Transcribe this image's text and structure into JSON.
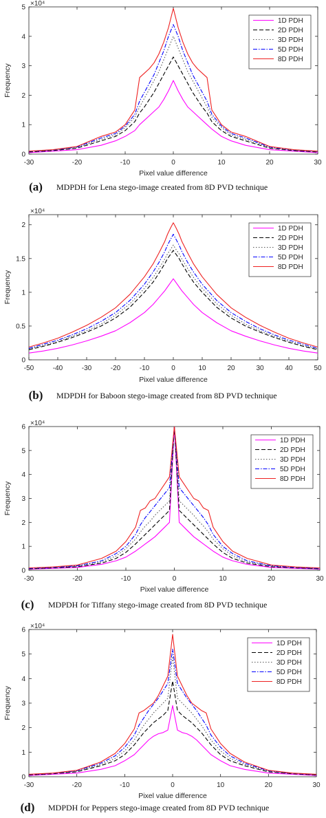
{
  "legend_names": [
    "1D PDH",
    "2D PDH",
    "3D PDH",
    "5D PDH",
    "8D PDH"
  ],
  "colors": {
    "1D PDH": "#ff00ff",
    "2D PDH": "#000000",
    "3D PDH": "#555555",
    "5D PDH": "#0000ff",
    "8D PDH": "#ee2020"
  },
  "chart_data": [
    {
      "type": "line",
      "panel_letter": "(a)",
      "caption": "MDPDH for Lena stego-image created from 8D PVD technique",
      "xlabel": "Pixel value difference",
      "ylabel": "Frequency",
      "y_exponent_label": "×10⁴",
      "xlim": [
        -30,
        30
      ],
      "ylim": [
        0,
        5
      ],
      "x_ticks": [
        -30,
        -20,
        -10,
        0,
        10,
        20,
        30
      ],
      "y_ticks": [
        0,
        1,
        2,
        3,
        4,
        5
      ],
      "legend": "top-right",
      "x": [
        -30,
        -25,
        -20,
        -15,
        -12,
        -10,
        -8,
        -7,
        -6,
        -5,
        -4,
        -3,
        -2,
        -1,
        0,
        1,
        2,
        3,
        4,
        5,
        6,
        7,
        8,
        10,
        12,
        15,
        20,
        25,
        30
      ],
      "series": [
        {
          "name": "1D PDH",
          "values": [
            0.05,
            0.1,
            0.15,
            0.3,
            0.45,
            0.6,
            0.8,
            1.0,
            1.15,
            1.3,
            1.45,
            1.6,
            1.85,
            2.15,
            2.5,
            2.15,
            1.85,
            1.6,
            1.45,
            1.3,
            1.15,
            1.0,
            0.85,
            0.6,
            0.45,
            0.3,
            0.15,
            0.1,
            0.05
          ]
        },
        {
          "name": "2D PDH",
          "values": [
            0.07,
            0.12,
            0.2,
            0.45,
            0.6,
            0.8,
            1.1,
            1.4,
            1.6,
            1.85,
            2.1,
            2.4,
            2.7,
            3.0,
            3.3,
            3.0,
            2.7,
            2.4,
            2.1,
            1.85,
            1.6,
            1.4,
            1.1,
            0.8,
            0.6,
            0.45,
            0.2,
            0.12,
            0.07
          ]
        },
        {
          "name": "3D PDH",
          "values": [
            0.08,
            0.13,
            0.22,
            0.5,
            0.65,
            0.9,
            1.25,
            1.6,
            1.9,
            2.2,
            2.5,
            2.8,
            3.2,
            3.6,
            4.0,
            3.6,
            3.2,
            2.8,
            2.5,
            2.2,
            1.9,
            1.6,
            1.25,
            0.9,
            0.65,
            0.5,
            0.22,
            0.13,
            0.08
          ]
        },
        {
          "name": "5D PDH",
          "values": [
            0.09,
            0.14,
            0.24,
            0.55,
            0.7,
            0.95,
            1.35,
            1.8,
            2.1,
            2.4,
            2.7,
            3.1,
            3.5,
            4.0,
            4.4,
            4.0,
            3.5,
            3.1,
            2.7,
            2.4,
            2.1,
            1.8,
            1.35,
            0.95,
            0.7,
            0.55,
            0.24,
            0.14,
            0.09
          ]
        },
        {
          "name": "8D PDH",
          "values": [
            0.1,
            0.15,
            0.26,
            0.6,
            0.75,
            1.0,
            1.5,
            2.6,
            2.75,
            2.9,
            3.1,
            3.4,
            3.8,
            4.3,
            4.95,
            4.3,
            3.8,
            3.4,
            3.1,
            2.9,
            2.75,
            2.6,
            1.5,
            1.0,
            0.75,
            0.6,
            0.26,
            0.15,
            0.1
          ]
        }
      ]
    },
    {
      "type": "line",
      "panel_letter": "(b)",
      "caption": "MDPDH for Baboon stego-image created from 8D PVD technique",
      "xlabel": "Pixel value difference",
      "ylabel": "Frequency",
      "y_exponent_label": "×10⁴",
      "xlim": [
        -50,
        50
      ],
      "ylim": [
        0,
        2.15
      ],
      "x_ticks": [
        -50,
        -40,
        -30,
        -20,
        -10,
        0,
        10,
        20,
        30,
        40,
        50
      ],
      "y_ticks": [
        0,
        0.5,
        1,
        1.5,
        2
      ],
      "legend": "top-right",
      "x": [
        -50,
        -45,
        -40,
        -35,
        -30,
        -25,
        -20,
        -15,
        -10,
        -7,
        -5,
        -3,
        -2,
        -1,
        0,
        1,
        2,
        3,
        5,
        7,
        10,
        15,
        20,
        25,
        30,
        35,
        40,
        45,
        50
      ],
      "series": [
        {
          "name": "1D PDH",
          "values": [
            0.1,
            0.13,
            0.17,
            0.22,
            0.28,
            0.35,
            0.43,
            0.55,
            0.7,
            0.82,
            0.92,
            1.02,
            1.08,
            1.14,
            1.2,
            1.14,
            1.08,
            1.02,
            0.92,
            0.82,
            0.7,
            0.55,
            0.43,
            0.35,
            0.28,
            0.22,
            0.17,
            0.13,
            0.1
          ]
        },
        {
          "name": "2D PDH",
          "values": [
            0.15,
            0.2,
            0.26,
            0.33,
            0.41,
            0.5,
            0.62,
            0.78,
            1.0,
            1.15,
            1.28,
            1.42,
            1.5,
            1.56,
            1.62,
            1.56,
            1.5,
            1.42,
            1.28,
            1.15,
            1.0,
            0.78,
            0.62,
            0.5,
            0.41,
            0.33,
            0.26,
            0.2,
            0.15
          ]
        },
        {
          "name": "3D PDH",
          "values": [
            0.16,
            0.21,
            0.27,
            0.35,
            0.43,
            0.53,
            0.66,
            0.83,
            1.06,
            1.22,
            1.35,
            1.49,
            1.57,
            1.63,
            1.7,
            1.63,
            1.57,
            1.49,
            1.35,
            1.22,
            1.06,
            0.83,
            0.66,
            0.53,
            0.43,
            0.35,
            0.27,
            0.21,
            0.16
          ]
        },
        {
          "name": "5D PDH",
          "values": [
            0.17,
            0.23,
            0.29,
            0.37,
            0.46,
            0.57,
            0.7,
            0.88,
            1.12,
            1.3,
            1.44,
            1.6,
            1.7,
            1.78,
            1.86,
            1.78,
            1.7,
            1.6,
            1.44,
            1.3,
            1.12,
            0.88,
            0.7,
            0.57,
            0.46,
            0.37,
            0.29,
            0.23,
            0.17
          ]
        },
        {
          "name": "8D PDH",
          "values": [
            0.19,
            0.25,
            0.32,
            0.41,
            0.51,
            0.63,
            0.77,
            0.97,
            1.23,
            1.42,
            1.58,
            1.75,
            1.86,
            1.95,
            2.03,
            1.95,
            1.86,
            1.75,
            1.58,
            1.42,
            1.23,
            0.97,
            0.77,
            0.63,
            0.51,
            0.41,
            0.32,
            0.25,
            0.19
          ]
        }
      ]
    },
    {
      "type": "line",
      "panel_letter": "(c)",
      "caption": "MDPDH for Tiffany stego-image created from 8D PVD technique",
      "xlabel": "Pixel value difference",
      "ylabel": "Frequency",
      "y_exponent_label": "×10⁴",
      "xlim": [
        -30,
        30
      ],
      "ylim": [
        0,
        6
      ],
      "x_ticks": [
        -30,
        -20,
        -10,
        0,
        10,
        20,
        30
      ],
      "y_ticks": [
        0,
        1,
        2,
        3,
        4,
        5,
        6
      ],
      "legend": "top-right",
      "x": [
        -30,
        -25,
        -20,
        -15,
        -12,
        -10,
        -8,
        -7,
        -6,
        -5,
        -4,
        -3,
        -2,
        -1,
        0,
        1,
        2,
        3,
        4,
        5,
        6,
        7,
        8,
        10,
        12,
        15,
        20,
        25,
        30
      ],
      "series": [
        {
          "name": "1D PDH",
          "values": [
            0.05,
            0.08,
            0.12,
            0.25,
            0.4,
            0.55,
            0.8,
            0.95,
            1.1,
            1.25,
            1.4,
            1.6,
            1.8,
            2.0,
            6.0,
            2.0,
            1.8,
            1.6,
            1.4,
            1.25,
            1.1,
            0.95,
            0.8,
            0.55,
            0.4,
            0.25,
            0.12,
            0.08,
            0.05
          ]
        },
        {
          "name": "2D PDH",
          "values": [
            0.06,
            0.1,
            0.15,
            0.3,
            0.5,
            0.75,
            1.1,
            1.3,
            1.5,
            1.7,
            1.9,
            2.1,
            2.3,
            2.5,
            6.0,
            2.5,
            2.3,
            2.1,
            1.9,
            1.7,
            1.5,
            1.3,
            1.1,
            0.75,
            0.5,
            0.3,
            0.15,
            0.1,
            0.06
          ]
        },
        {
          "name": "3D PDH",
          "values": [
            0.07,
            0.11,
            0.17,
            0.35,
            0.6,
            0.9,
            1.3,
            1.6,
            1.85,
            2.05,
            2.3,
            2.5,
            2.7,
            2.9,
            6.0,
            2.9,
            2.7,
            2.5,
            2.3,
            2.05,
            1.85,
            1.6,
            1.3,
            0.9,
            0.6,
            0.35,
            0.17,
            0.11,
            0.07
          ]
        },
        {
          "name": "5D PDH",
          "values": [
            0.08,
            0.12,
            0.19,
            0.4,
            0.7,
            1.0,
            1.5,
            1.9,
            2.2,
            2.45,
            2.7,
            2.95,
            3.2,
            3.45,
            6.0,
            3.45,
            3.2,
            2.95,
            2.7,
            2.45,
            2.2,
            1.9,
            1.5,
            1.0,
            0.7,
            0.4,
            0.19,
            0.12,
            0.08
          ]
        },
        {
          "name": "8D PDH",
          "values": [
            0.1,
            0.14,
            0.22,
            0.5,
            0.8,
            1.2,
            1.8,
            2.5,
            2.6,
            2.9,
            3.0,
            3.3,
            3.6,
            3.9,
            6.0,
            3.9,
            3.6,
            3.3,
            3.0,
            2.9,
            2.6,
            2.5,
            1.8,
            1.2,
            0.8,
            0.5,
            0.22,
            0.14,
            0.1
          ]
        }
      ]
    },
    {
      "type": "line",
      "panel_letter": "(d)",
      "caption": "MDPDH for Peppers stego-image created from 8D PVD technique",
      "xlabel": "Pixel value difference",
      "ylabel": "Frequency",
      "y_exponent_label": "×10⁴",
      "xlim": [
        -30,
        30
      ],
      "ylim": [
        0,
        6
      ],
      "x_ticks": [
        -30,
        -20,
        -10,
        0,
        10,
        20,
        30
      ],
      "y_ticks": [
        0,
        1,
        2,
        3,
        4,
        5,
        6
      ],
      "legend": "top-right",
      "x": [
        -30,
        -25,
        -20,
        -15,
        -12,
        -10,
        -8,
        -7,
        -6,
        -5,
        -4,
        -3,
        -2,
        -1,
        0,
        1,
        2,
        3,
        4,
        5,
        6,
        7,
        8,
        10,
        12,
        15,
        20,
        25,
        30
      ],
      "series": [
        {
          "name": "1D PDH",
          "values": [
            0.05,
            0.1,
            0.15,
            0.3,
            0.45,
            0.65,
            0.9,
            1.1,
            1.3,
            1.5,
            1.65,
            1.75,
            1.8,
            1.9,
            2.9,
            1.9,
            1.8,
            1.75,
            1.65,
            1.5,
            1.3,
            1.1,
            0.9,
            0.65,
            0.45,
            0.3,
            0.15,
            0.1,
            0.05
          ]
        },
        {
          "name": "2D PDH",
          "values": [
            0.07,
            0.12,
            0.2,
            0.45,
            0.65,
            0.9,
            1.3,
            1.55,
            1.8,
            2.0,
            2.2,
            2.35,
            2.5,
            2.7,
            3.9,
            2.7,
            2.5,
            2.35,
            2.2,
            2.0,
            1.8,
            1.55,
            1.3,
            0.9,
            0.65,
            0.45,
            0.2,
            0.12,
            0.07
          ]
        },
        {
          "name": "3D PDH",
          "values": [
            0.08,
            0.13,
            0.22,
            0.5,
            0.75,
            1.05,
            1.5,
            1.8,
            2.1,
            2.35,
            2.6,
            2.8,
            3.0,
            3.2,
            4.9,
            3.2,
            3.0,
            2.8,
            2.6,
            2.35,
            2.1,
            1.8,
            1.5,
            1.05,
            0.75,
            0.5,
            0.22,
            0.13,
            0.08
          ]
        },
        {
          "name": "5D PDH",
          "values": [
            0.09,
            0.14,
            0.24,
            0.55,
            0.85,
            1.2,
            1.7,
            2.1,
            2.4,
            2.7,
            2.95,
            3.2,
            3.5,
            3.8,
            5.2,
            3.8,
            3.5,
            3.2,
            2.95,
            2.7,
            2.4,
            2.1,
            1.7,
            1.2,
            0.85,
            0.55,
            0.24,
            0.14,
            0.09
          ]
        },
        {
          "name": "8D PDH",
          "values": [
            0.1,
            0.15,
            0.26,
            0.6,
            0.95,
            1.35,
            1.95,
            2.6,
            2.7,
            2.85,
            3.0,
            3.3,
            3.7,
            4.1,
            5.8,
            4.1,
            3.7,
            3.3,
            3.0,
            2.85,
            2.7,
            2.6,
            1.95,
            1.35,
            0.95,
            0.6,
            0.26,
            0.15,
            0.1
          ]
        }
      ]
    }
  ]
}
